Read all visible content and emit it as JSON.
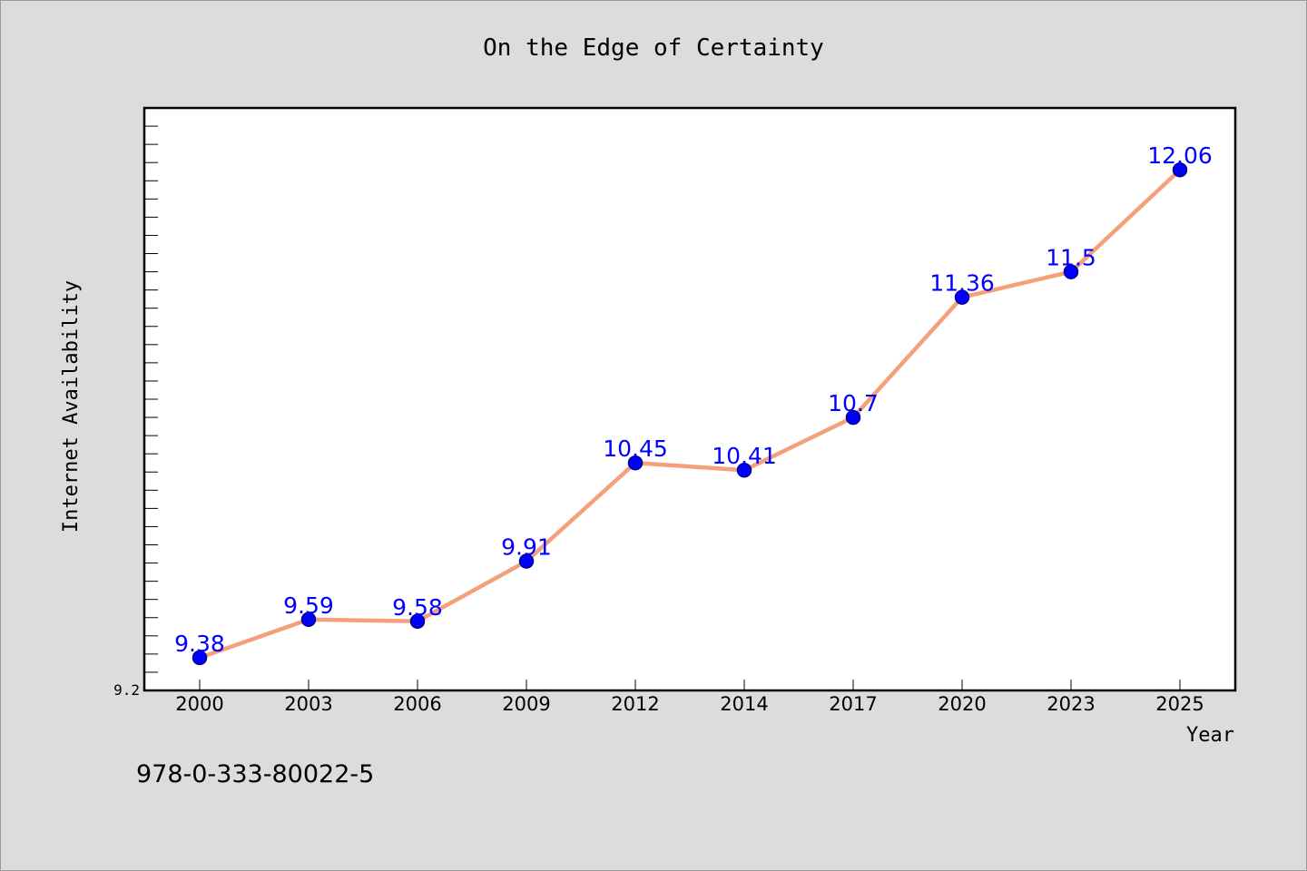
{
  "isbn": "978-0-333-80022-5",
  "colors": {
    "background": "#dcdcdc",
    "plot_background": "#ffffff",
    "line": "#f4a07a",
    "marker": "#0000ff",
    "marker_edge": "#00008b",
    "data_label": "#0000ff"
  },
  "chart_data": {
    "type": "line",
    "title": "On the Edge of Certainty",
    "xlabel": "Year",
    "ylabel": "Internet Availability",
    "categories": [
      "2000",
      "2003",
      "2006",
      "2009",
      "2012",
      "2014",
      "2017",
      "2020",
      "2023",
      "2025"
    ],
    "series": [
      {
        "values": [
          9.38,
          9.59,
          9.58,
          9.91,
          10.45,
          10.41,
          10.7,
          11.36,
          11.5,
          12.06
        ],
        "data_labels": [
          "9.38",
          "9.59",
          "9.58",
          "9.91",
          "10.45",
          "10.41",
          "10.7",
          "11.36",
          "11.5",
          "12.06"
        ]
      }
    ],
    "ylim": [
      9.2,
      12.4
    ],
    "y_tick_labels": [
      "9.2"
    ],
    "y_minor_tick_step": 0.1,
    "grid": false,
    "legend": "none"
  }
}
